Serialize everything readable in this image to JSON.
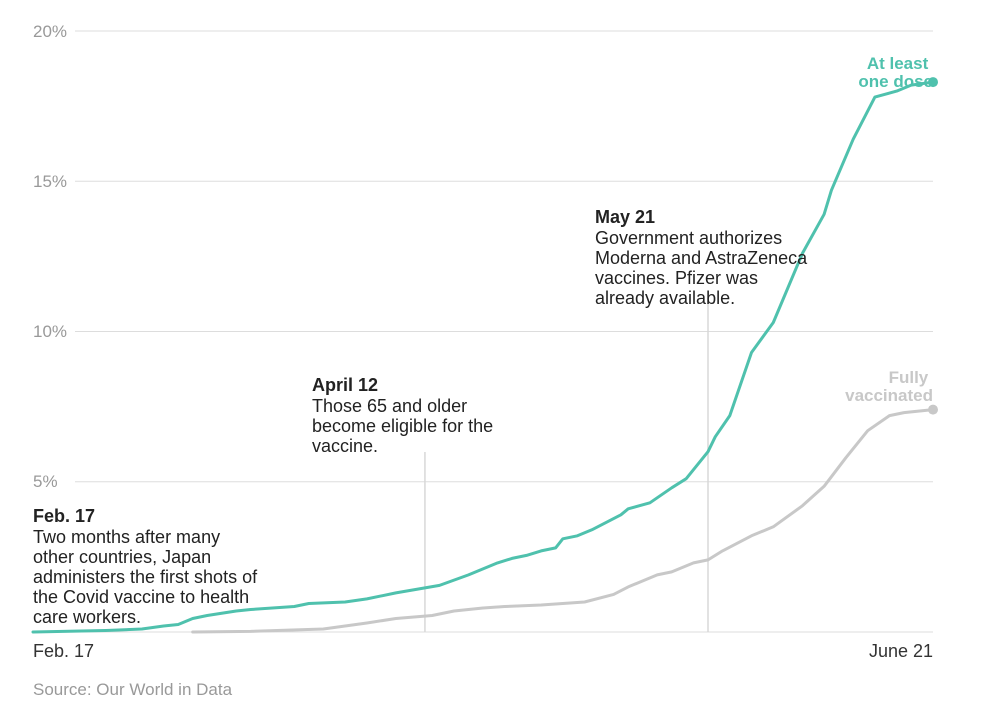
{
  "chart_data": {
    "type": "line",
    "y_ticks": [
      "20%",
      "15%",
      "10%",
      "5%"
    ],
    "x_tick_labels": [
      "Feb. 17",
      "June 21"
    ],
    "ylim": [
      0,
      20
    ],
    "x_domain_days": [
      0,
      124
    ],
    "grid": true,
    "source": "Source: Our World in Data",
    "series": [
      {
        "name": "At least one dose",
        "label_lines": [
          "At least",
          "one dose"
        ],
        "color": "#4fc1ad",
        "x": [
          0,
          10,
          15,
          18,
          20,
          22,
          24,
          28,
          30,
          36,
          38,
          43,
          46,
          50,
          56,
          60,
          62,
          64,
          66,
          68,
          70,
          72,
          73,
          75,
          77,
          81,
          82,
          85,
          88,
          90,
          93,
          94,
          96,
          99,
          102,
          106,
          109,
          110,
          113,
          116,
          119,
          121,
          124
        ],
        "values": [
          0.0,
          0.05,
          0.1,
          0.2,
          0.25,
          0.45,
          0.55,
          0.7,
          0.75,
          0.85,
          0.95,
          1.0,
          1.1,
          1.3,
          1.55,
          1.9,
          2.1,
          2.3,
          2.45,
          2.55,
          2.7,
          2.8,
          3.1,
          3.2,
          3.4,
          3.9,
          4.1,
          4.3,
          4.8,
          5.1,
          6.0,
          6.5,
          7.2,
          9.3,
          10.3,
          12.6,
          13.9,
          14.7,
          16.4,
          17.8,
          18.0,
          18.2,
          18.3
        ]
      },
      {
        "name": "Fully vaccinated",
        "label_lines": [
          "Fully",
          "vaccinated"
        ],
        "color": "#c8c8c8",
        "x": [
          22,
          30,
          40,
          46,
          50,
          55,
          58,
          62,
          65,
          70,
          76,
          80,
          82,
          86,
          88,
          91,
          93,
          95,
          99,
          102,
          106,
          109,
          112,
          115,
          118,
          120,
          122,
          124
        ],
        "values": [
          0.0,
          0.02,
          0.1,
          0.3,
          0.45,
          0.55,
          0.7,
          0.8,
          0.85,
          0.9,
          1.0,
          1.25,
          1.5,
          1.9,
          2.0,
          2.3,
          2.4,
          2.7,
          3.2,
          3.5,
          4.2,
          4.85,
          5.8,
          6.7,
          7.2,
          7.3,
          7.35,
          7.4
        ]
      }
    ],
    "annotations": [
      {
        "date": "Feb. 17",
        "body": [
          "Two months after many",
          "other countries, Japan",
          "administers the first shots of",
          "the Covid vaccine to health",
          "care workers."
        ],
        "x_day": 0,
        "show_line": false
      },
      {
        "date": "April 12",
        "body": [
          "Those 65 and older",
          "become eligible for the",
          "vaccine."
        ],
        "x_day": 54,
        "show_line": true
      },
      {
        "date": "May 21",
        "body": [
          "Government authorizes",
          "Moderna and AstraZeneca",
          "vaccines. Pfizer was",
          "already available."
        ],
        "x_day": 93,
        "show_line": true
      }
    ]
  }
}
